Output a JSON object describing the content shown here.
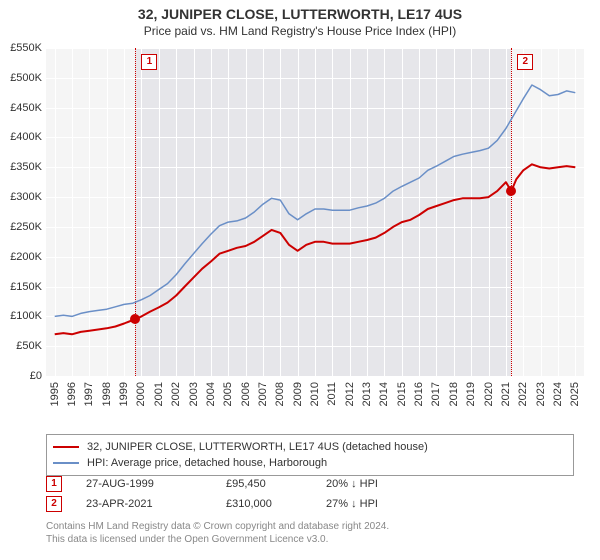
{
  "title": "32, JUNIPER CLOSE, LUTTERWORTH, LE17 4US",
  "subtitle": "Price paid vs. HM Land Registry's House Price Index (HPI)",
  "chart": {
    "type": "line",
    "background_color": "#f5f5f5",
    "grid_color": "#ffffff",
    "text_color": "#333333",
    "shaded_region": {
      "start": 1999.65,
      "end": 2021.31,
      "color": "#e6e6ea"
    },
    "xlim": [
      1994.5,
      2025.5
    ],
    "ylim": [
      0,
      550000
    ],
    "ytick_step": 50000,
    "yticks": [
      "£0",
      "£50K",
      "£100K",
      "£150K",
      "£200K",
      "£250K",
      "£300K",
      "£350K",
      "£400K",
      "£450K",
      "£500K",
      "£550K"
    ],
    "xticks": [
      "1995",
      "1996",
      "1997",
      "1998",
      "1999",
      "2000",
      "2001",
      "2002",
      "2003",
      "2004",
      "2005",
      "2006",
      "2007",
      "2008",
      "2009",
      "2010",
      "2011",
      "2012",
      "2013",
      "2014",
      "2015",
      "2016",
      "2017",
      "2018",
      "2019",
      "2020",
      "2021",
      "2022",
      "2023",
      "2024",
      "2025"
    ],
    "series": [
      {
        "id": "price_paid",
        "label": "32, JUNIPER CLOSE, LUTTERWORTH, LE17 4US (detached house)",
        "color": "#cc0000",
        "line_width": 2,
        "points": [
          [
            1995,
            70000
          ],
          [
            1995.5,
            72000
          ],
          [
            1996,
            70000
          ],
          [
            1996.5,
            74000
          ],
          [
            1997,
            76000
          ],
          [
            1997.5,
            78000
          ],
          [
            1998,
            80000
          ],
          [
            1998.5,
            83000
          ],
          [
            1999,
            88000
          ],
          [
            1999.65,
            95450
          ],
          [
            2000,
            100000
          ],
          [
            2000.5,
            108000
          ],
          [
            2001,
            115000
          ],
          [
            2001.5,
            123000
          ],
          [
            2002,
            135000
          ],
          [
            2002.5,
            150000
          ],
          [
            2003,
            165000
          ],
          [
            2003.5,
            180000
          ],
          [
            2004,
            192000
          ],
          [
            2004.5,
            205000
          ],
          [
            2005,
            210000
          ],
          [
            2005.5,
            215000
          ],
          [
            2006,
            218000
          ],
          [
            2006.5,
            225000
          ],
          [
            2007,
            235000
          ],
          [
            2007.5,
            245000
          ],
          [
            2008,
            240000
          ],
          [
            2008.5,
            220000
          ],
          [
            2009,
            210000
          ],
          [
            2009.5,
            220000
          ],
          [
            2010,
            225000
          ],
          [
            2010.5,
            225000
          ],
          [
            2011,
            222000
          ],
          [
            2011.5,
            222000
          ],
          [
            2012,
            222000
          ],
          [
            2012.5,
            225000
          ],
          [
            2013,
            228000
          ],
          [
            2013.5,
            232000
          ],
          [
            2014,
            240000
          ],
          [
            2014.5,
            250000
          ],
          [
            2015,
            258000
          ],
          [
            2015.5,
            262000
          ],
          [
            2016,
            270000
          ],
          [
            2016.5,
            280000
          ],
          [
            2017,
            285000
          ],
          [
            2017.5,
            290000
          ],
          [
            2018,
            295000
          ],
          [
            2018.5,
            298000
          ],
          [
            2019,
            298000
          ],
          [
            2019.5,
            298000
          ],
          [
            2020,
            300000
          ],
          [
            2020.5,
            310000
          ],
          [
            2021,
            325000
          ],
          [
            2021.31,
            310000
          ],
          [
            2021.6,
            330000
          ],
          [
            2022,
            345000
          ],
          [
            2022.5,
            355000
          ],
          [
            2023,
            350000
          ],
          [
            2023.5,
            348000
          ],
          [
            2024,
            350000
          ],
          [
            2024.5,
            352000
          ],
          [
            2025,
            350000
          ]
        ]
      },
      {
        "id": "hpi",
        "label": "HPI: Average price, detached house, Harborough",
        "color": "#6a8fc7",
        "line_width": 1.5,
        "points": [
          [
            1995,
            100000
          ],
          [
            1995.5,
            102000
          ],
          [
            1996,
            100000
          ],
          [
            1996.5,
            105000
          ],
          [
            1997,
            108000
          ],
          [
            1997.5,
            110000
          ],
          [
            1998,
            112000
          ],
          [
            1998.5,
            116000
          ],
          [
            1999,
            120000
          ],
          [
            1999.5,
            122000
          ],
          [
            2000,
            128000
          ],
          [
            2000.5,
            135000
          ],
          [
            2001,
            145000
          ],
          [
            2001.5,
            155000
          ],
          [
            2002,
            170000
          ],
          [
            2002.5,
            188000
          ],
          [
            2003,
            205000
          ],
          [
            2003.5,
            222000
          ],
          [
            2004,
            238000
          ],
          [
            2004.5,
            252000
          ],
          [
            2005,
            258000
          ],
          [
            2005.5,
            260000
          ],
          [
            2006,
            265000
          ],
          [
            2006.5,
            275000
          ],
          [
            2007,
            288000
          ],
          [
            2007.5,
            298000
          ],
          [
            2008,
            295000
          ],
          [
            2008.5,
            272000
          ],
          [
            2009,
            262000
          ],
          [
            2009.5,
            272000
          ],
          [
            2010,
            280000
          ],
          [
            2010.5,
            280000
          ],
          [
            2011,
            278000
          ],
          [
            2011.5,
            278000
          ],
          [
            2012,
            278000
          ],
          [
            2012.5,
            282000
          ],
          [
            2013,
            285000
          ],
          [
            2013.5,
            290000
          ],
          [
            2014,
            298000
          ],
          [
            2014.5,
            310000
          ],
          [
            2015,
            318000
          ],
          [
            2015.5,
            325000
          ],
          [
            2016,
            332000
          ],
          [
            2016.5,
            345000
          ],
          [
            2017,
            352000
          ],
          [
            2017.5,
            360000
          ],
          [
            2018,
            368000
          ],
          [
            2018.5,
            372000
          ],
          [
            2019,
            375000
          ],
          [
            2019.5,
            378000
          ],
          [
            2020,
            382000
          ],
          [
            2020.5,
            395000
          ],
          [
            2021,
            415000
          ],
          [
            2021.5,
            440000
          ],
          [
            2022,
            465000
          ],
          [
            2022.5,
            488000
          ],
          [
            2023,
            480000
          ],
          [
            2023.5,
            470000
          ],
          [
            2024,
            472000
          ],
          [
            2024.5,
            478000
          ],
          [
            2025,
            475000
          ]
        ]
      }
    ],
    "vlines": [
      {
        "x": 1999.65,
        "color": "#cc0000",
        "style": "dotted"
      },
      {
        "x": 2021.31,
        "color": "#cc0000",
        "style": "dotted"
      }
    ],
    "markers": [
      {
        "n": "1",
        "x": 1999.65,
        "y": 95450,
        "badge_y": 540000
      },
      {
        "n": "2",
        "x": 2021.31,
        "y": 310000,
        "badge_y": 540000
      }
    ]
  },
  "legend": {
    "items": [
      {
        "color": "#cc0000",
        "label": "32, JUNIPER CLOSE, LUTTERWORTH, LE17 4US (detached house)"
      },
      {
        "color": "#6a8fc7",
        "label": "HPI: Average price, detached house, Harborough"
      }
    ]
  },
  "transactions": [
    {
      "n": "1",
      "date": "27-AUG-1999",
      "price": "£95,450",
      "delta": "20% ↓ HPI"
    },
    {
      "n": "2",
      "date": "23-APR-2021",
      "price": "£310,000",
      "delta": "27% ↓ HPI"
    }
  ],
  "footer": {
    "line1": "Contains HM Land Registry data © Crown copyright and database right 2024.",
    "line2": "This data is licensed under the Open Government Licence v3.0."
  }
}
